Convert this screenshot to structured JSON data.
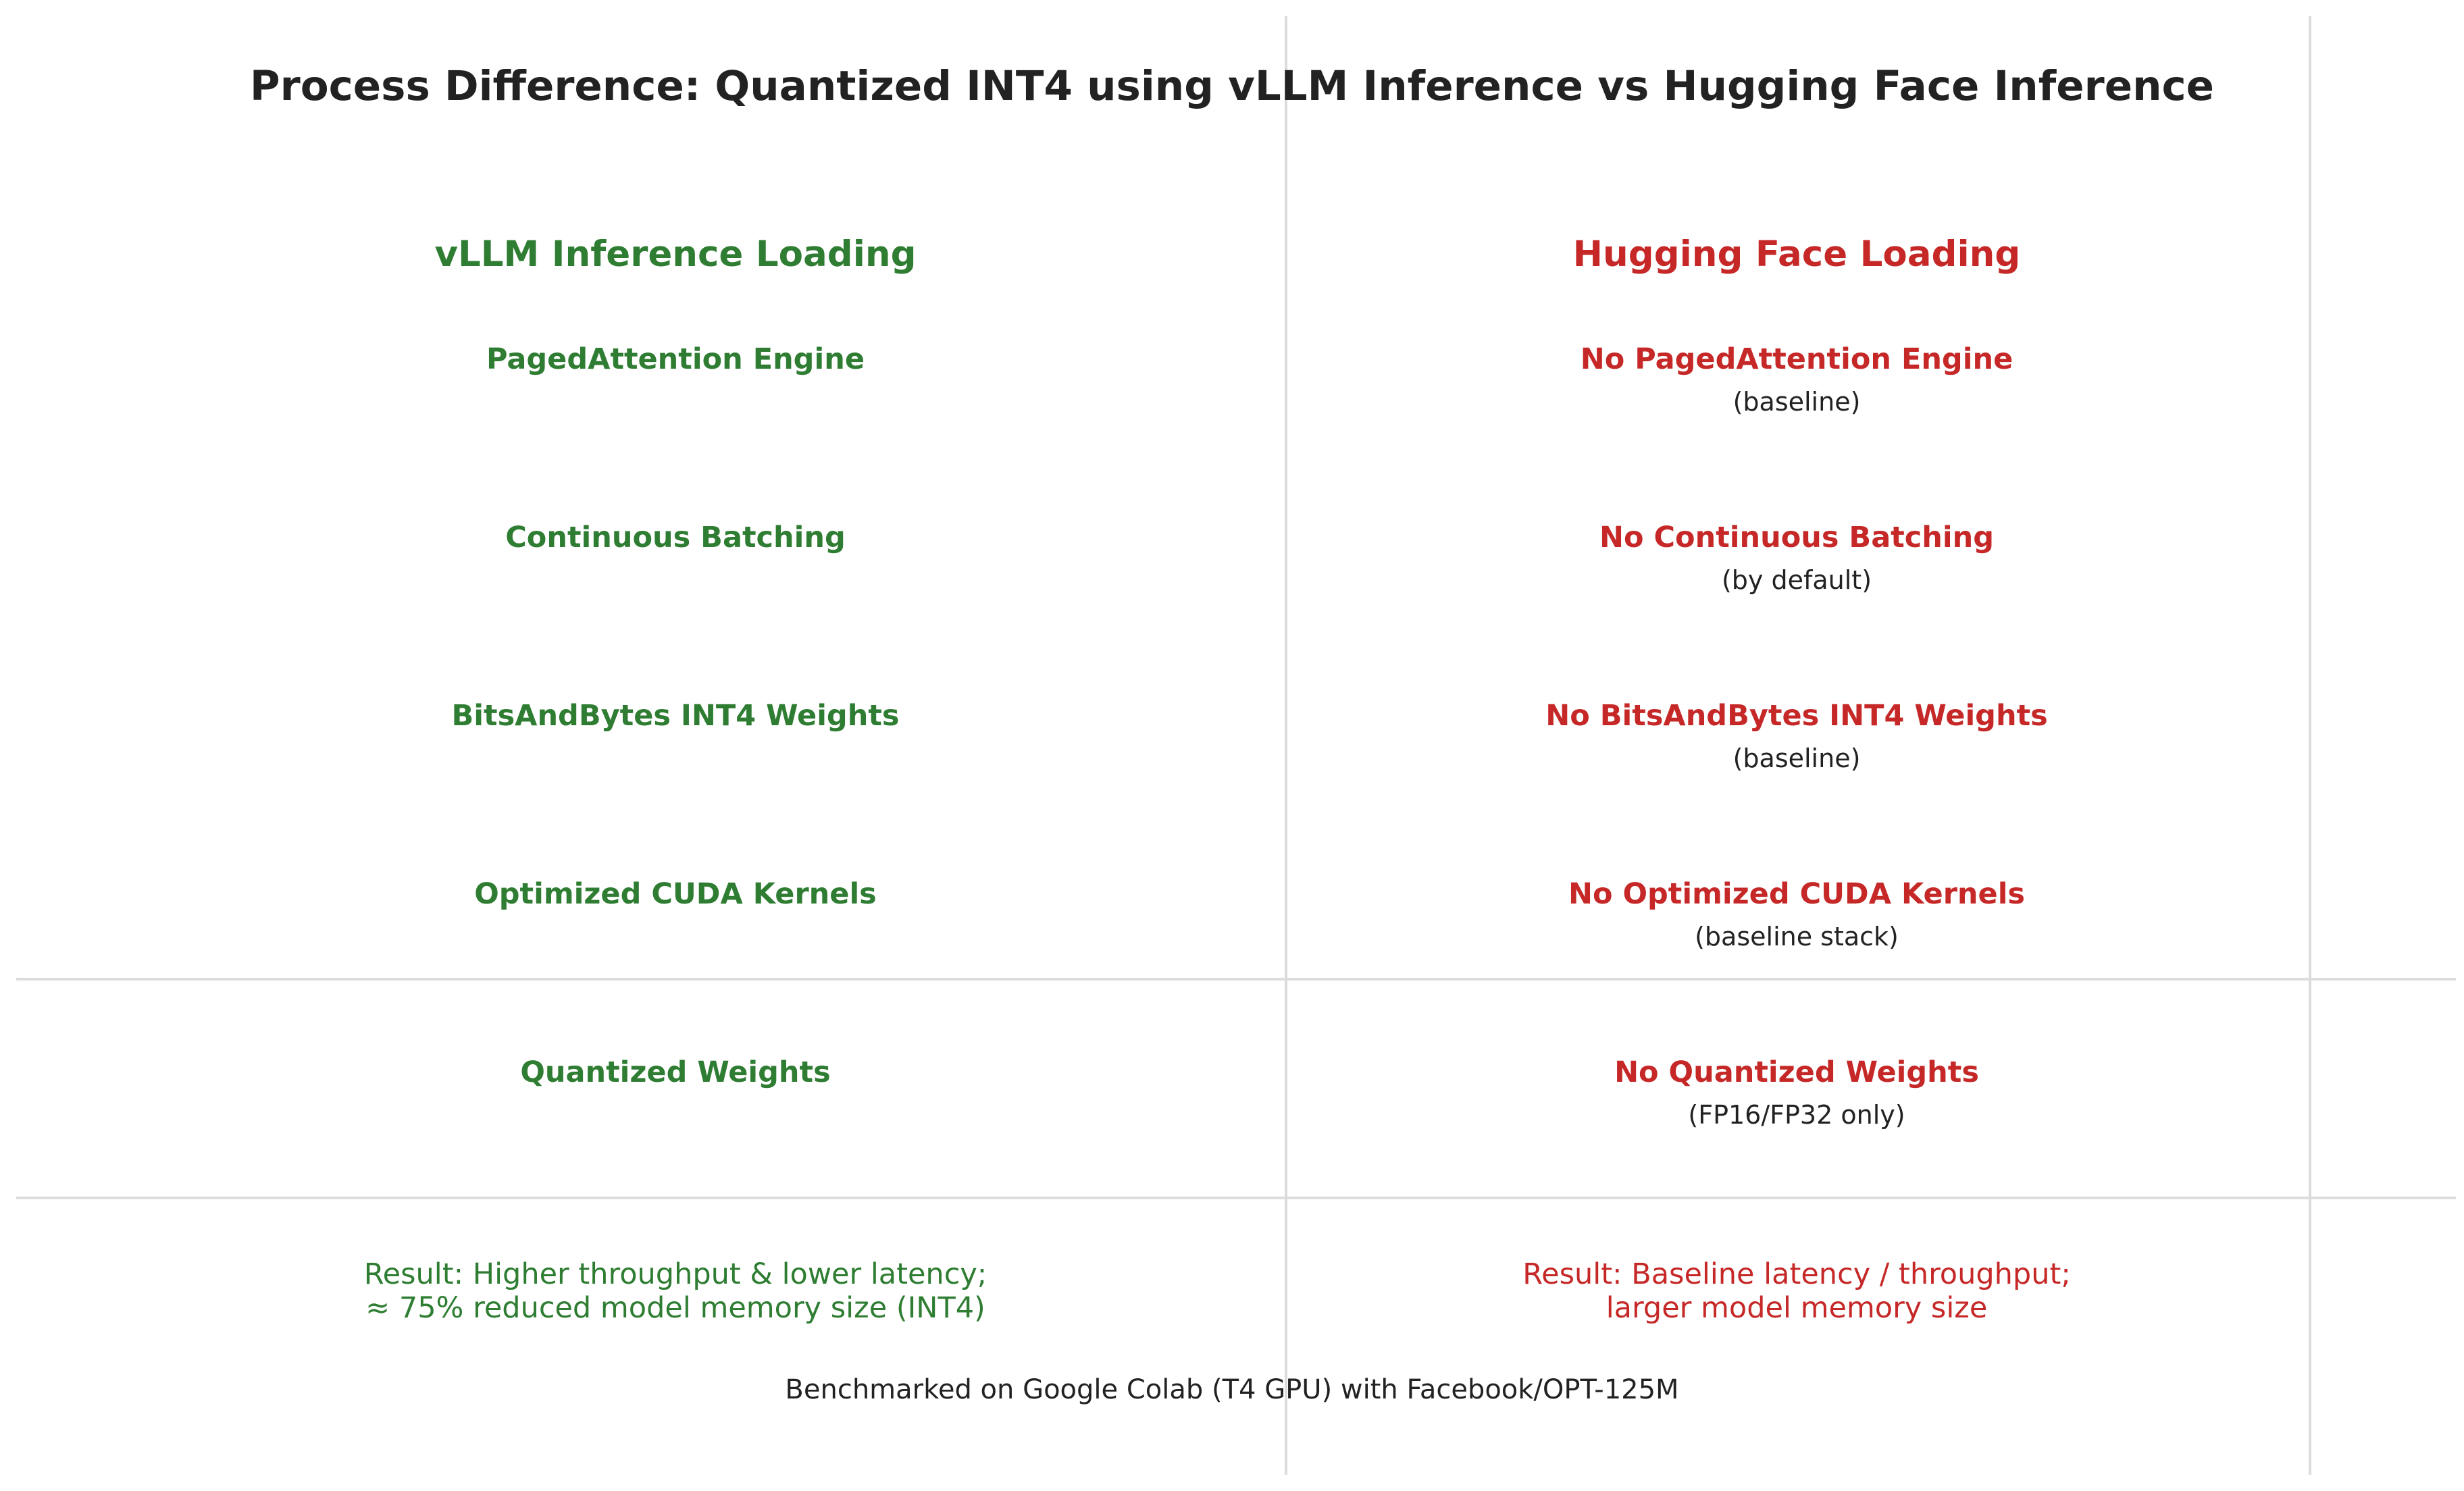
{
  "colors": {
    "left_accent": "#2e7d32",
    "right_accent": "#c62828",
    "text": "#222222",
    "rules": "#dcdcdc"
  },
  "title": "Process Difference: Quantized INT4 using vLLM Inference vs Hugging Face Inference",
  "left": {
    "heading": "vLLM Inference Loading",
    "items": [
      "PagedAttention Engine",
      "Continuous Batching",
      "BitsAndBytes INT4 Weights",
      "Optimized CUDA Kernels",
      "Quantized Weights"
    ],
    "result_line1": "Result: Higher throughput & lower latency;",
    "result_line2": "≈ 75% reduced model memory size (INT4)"
  },
  "right": {
    "heading": "Hugging Face Loading",
    "items": [
      {
        "label": "No PagedAttention Engine",
        "note": "(baseline)"
      },
      {
        "label": "No Continuous Batching",
        "note": "(by default)"
      },
      {
        "label": "No BitsAndBytes INT4 Weights",
        "note": "(baseline)"
      },
      {
        "label": "No Optimized CUDA Kernels",
        "note": "(baseline stack)"
      },
      {
        "label": "No Quantized Weights",
        "note": "(FP16/FP32 only)"
      }
    ],
    "result_line1": "Result: Baseline latency / throughput;",
    "result_line2": "larger model memory size"
  },
  "footer": "Benchmarked on Google Colab (T4 GPU) with Facebook/OPT-125M"
}
